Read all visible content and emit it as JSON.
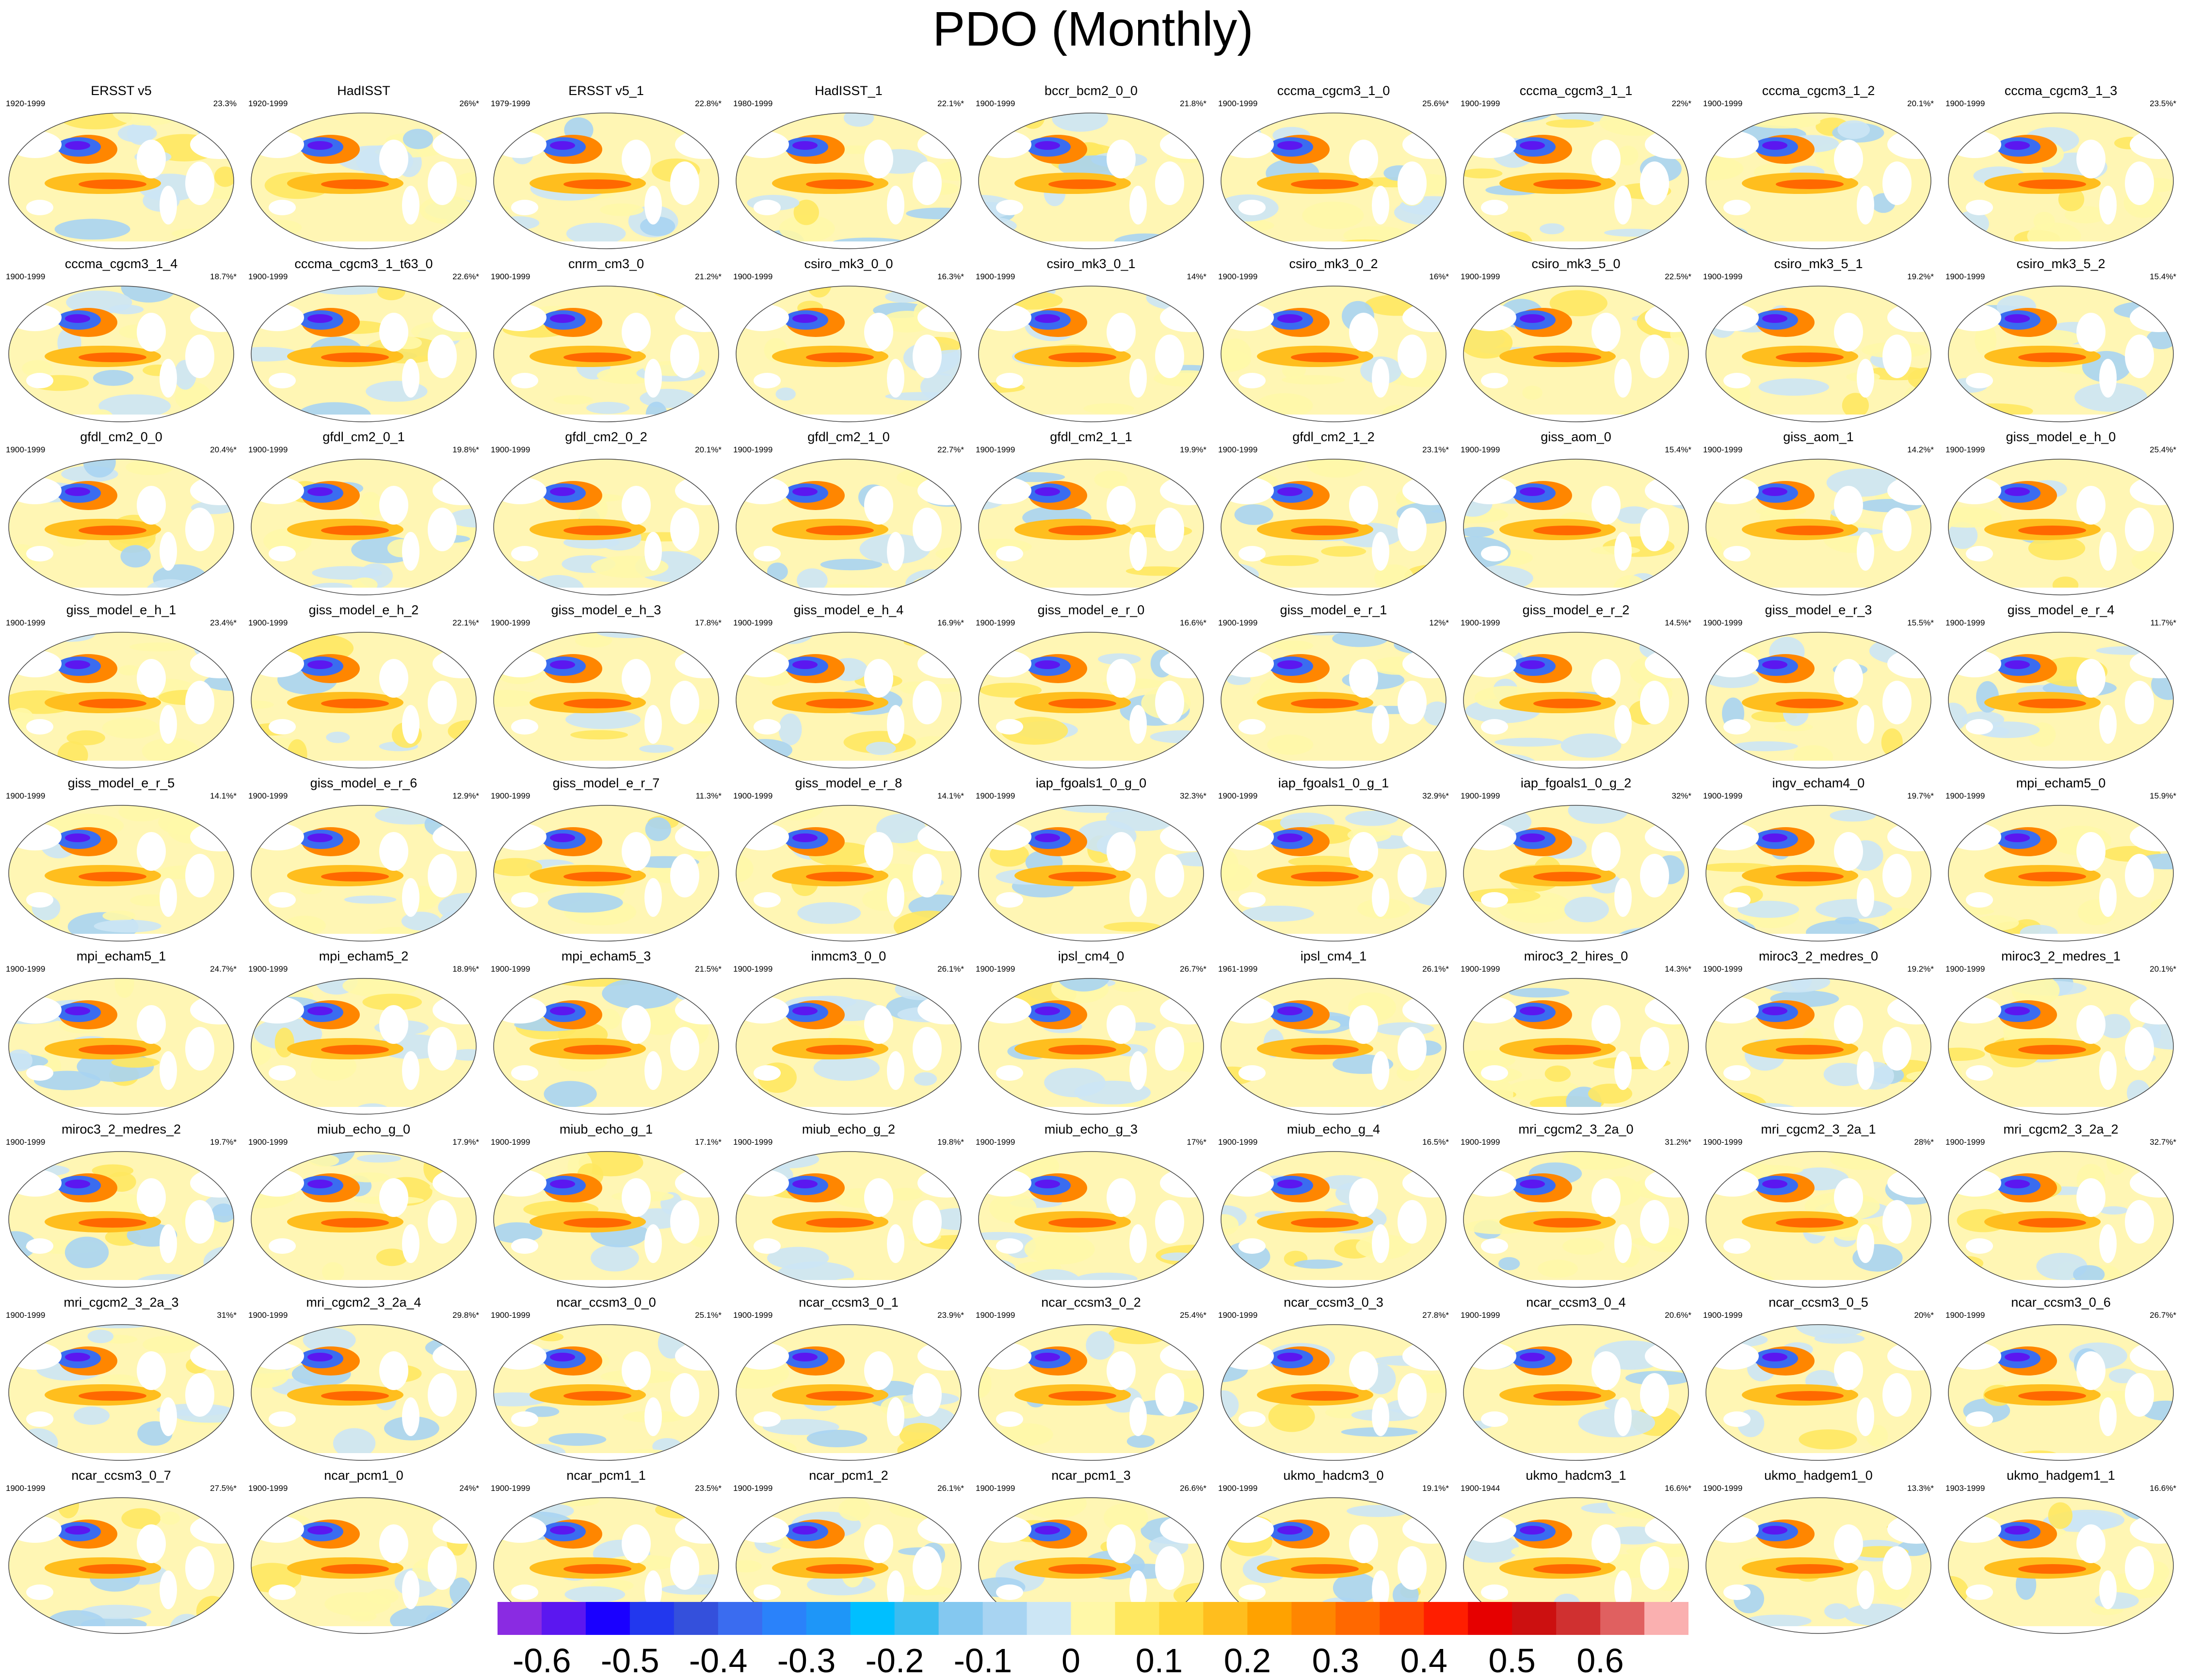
{
  "title": "PDO (Monthly)",
  "panels": [
    {
      "name": "ERSST v5",
      "years": "1920-1999",
      "pct": "23.3%"
    },
    {
      "name": "HadISST",
      "years": "1920-1999",
      "pct": "26%*"
    },
    {
      "name": "ERSST v5_1",
      "years": "1979-1999",
      "pct": "22.8%*"
    },
    {
      "name": "HadISST_1",
      "years": "1980-1999",
      "pct": "22.1%*"
    },
    {
      "name": "bccr_bcm2_0_0",
      "years": "1900-1999",
      "pct": "21.8%*"
    },
    {
      "name": "cccma_cgcm3_1_0",
      "years": "1900-1999",
      "pct": "25.6%*"
    },
    {
      "name": "cccma_cgcm3_1_1",
      "years": "1900-1999",
      "pct": "22%*"
    },
    {
      "name": "cccma_cgcm3_1_2",
      "years": "1900-1999",
      "pct": "20.1%*"
    },
    {
      "name": "cccma_cgcm3_1_3",
      "years": "1900-1999",
      "pct": "23.5%*"
    },
    {
      "name": "cccma_cgcm3_1_4",
      "years": "1900-1999",
      "pct": "18.7%*"
    },
    {
      "name": "cccma_cgcm3_1_t63_0",
      "years": "1900-1999",
      "pct": "22.6%*"
    },
    {
      "name": "cnrm_cm3_0",
      "years": "1900-1999",
      "pct": "21.2%*"
    },
    {
      "name": "csiro_mk3_0_0",
      "years": "1900-1999",
      "pct": "16.3%*"
    },
    {
      "name": "csiro_mk3_0_1",
      "years": "1900-1999",
      "pct": "14%*"
    },
    {
      "name": "csiro_mk3_0_2",
      "years": "1900-1999",
      "pct": "16%*"
    },
    {
      "name": "csiro_mk3_5_0",
      "years": "1900-1999",
      "pct": "22.5%*"
    },
    {
      "name": "csiro_mk3_5_1",
      "years": "1900-1999",
      "pct": "19.2%*"
    },
    {
      "name": "csiro_mk3_5_2",
      "years": "1900-1999",
      "pct": "15.4%*"
    },
    {
      "name": "gfdl_cm2_0_0",
      "years": "1900-1999",
      "pct": "20.4%*"
    },
    {
      "name": "gfdl_cm2_0_1",
      "years": "1900-1999",
      "pct": "19.8%*"
    },
    {
      "name": "gfdl_cm2_0_2",
      "years": "1900-1999",
      "pct": "20.1%*"
    },
    {
      "name": "gfdl_cm2_1_0",
      "years": "1900-1999",
      "pct": "22.7%*"
    },
    {
      "name": "gfdl_cm2_1_1",
      "years": "1900-1999",
      "pct": "19.9%*"
    },
    {
      "name": "gfdl_cm2_1_2",
      "years": "1900-1999",
      "pct": "23.1%*"
    },
    {
      "name": "giss_aom_0",
      "years": "1900-1999",
      "pct": "15.4%*"
    },
    {
      "name": "giss_aom_1",
      "years": "1900-1999",
      "pct": "14.2%*"
    },
    {
      "name": "giss_model_e_h_0",
      "years": "1900-1999",
      "pct": "25.4%*"
    },
    {
      "name": "giss_model_e_h_1",
      "years": "1900-1999",
      "pct": "23.4%*"
    },
    {
      "name": "giss_model_e_h_2",
      "years": "1900-1999",
      "pct": "22.1%*"
    },
    {
      "name": "giss_model_e_h_3",
      "years": "1900-1999",
      "pct": "17.8%*"
    },
    {
      "name": "giss_model_e_h_4",
      "years": "1900-1999",
      "pct": "16.9%*"
    },
    {
      "name": "giss_model_e_r_0",
      "years": "1900-1999",
      "pct": "16.6%*"
    },
    {
      "name": "giss_model_e_r_1",
      "years": "1900-1999",
      "pct": "12%*"
    },
    {
      "name": "giss_model_e_r_2",
      "years": "1900-1999",
      "pct": "14.5%*"
    },
    {
      "name": "giss_model_e_r_3",
      "years": "1900-1999",
      "pct": "15.5%*"
    },
    {
      "name": "giss_model_e_r_4",
      "years": "1900-1999",
      "pct": "11.7%*"
    },
    {
      "name": "giss_model_e_r_5",
      "years": "1900-1999",
      "pct": "14.1%*"
    },
    {
      "name": "giss_model_e_r_6",
      "years": "1900-1999",
      "pct": "12.9%*"
    },
    {
      "name": "giss_model_e_r_7",
      "years": "1900-1999",
      "pct": "11.3%*"
    },
    {
      "name": "giss_model_e_r_8",
      "years": "1900-1999",
      "pct": "14.1%*"
    },
    {
      "name": "iap_fgoals1_0_g_0",
      "years": "1900-1999",
      "pct": "32.3%*"
    },
    {
      "name": "iap_fgoals1_0_g_1",
      "years": "1900-1999",
      "pct": "32.9%*"
    },
    {
      "name": "iap_fgoals1_0_g_2",
      "years": "1900-1999",
      "pct": "32%*"
    },
    {
      "name": "ingv_echam4_0",
      "years": "1900-1999",
      "pct": "19.7%*"
    },
    {
      "name": "mpi_echam5_0",
      "years": "1900-1999",
      "pct": "15.9%*"
    },
    {
      "name": "mpi_echam5_1",
      "years": "1900-1999",
      "pct": "24.7%*"
    },
    {
      "name": "mpi_echam5_2",
      "years": "1900-1999",
      "pct": "18.9%*"
    },
    {
      "name": "mpi_echam5_3",
      "years": "1900-1999",
      "pct": "21.5%*"
    },
    {
      "name": "inmcm3_0_0",
      "years": "1900-1999",
      "pct": "26.1%*"
    },
    {
      "name": "ipsl_cm4_0",
      "years": "1900-1999",
      "pct": "26.7%*"
    },
    {
      "name": "ipsl_cm4_1",
      "years": "1961-1999",
      "pct": "26.1%*"
    },
    {
      "name": "miroc3_2_hires_0",
      "years": "1900-1999",
      "pct": "14.3%*"
    },
    {
      "name": "miroc3_2_medres_0",
      "years": "1900-1999",
      "pct": "19.2%*"
    },
    {
      "name": "miroc3_2_medres_1",
      "years": "1900-1999",
      "pct": "20.1%*"
    },
    {
      "name": "miroc3_2_medres_2",
      "years": "1900-1999",
      "pct": "19.7%*"
    },
    {
      "name": "miub_echo_g_0",
      "years": "1900-1999",
      "pct": "17.9%*"
    },
    {
      "name": "miub_echo_g_1",
      "years": "1900-1999",
      "pct": "17.1%*"
    },
    {
      "name": "miub_echo_g_2",
      "years": "1900-1999",
      "pct": "19.8%*"
    },
    {
      "name": "miub_echo_g_3",
      "years": "1900-1999",
      "pct": "17%*"
    },
    {
      "name": "miub_echo_g_4",
      "years": "1900-1999",
      "pct": "16.5%*"
    },
    {
      "name": "mri_cgcm2_3_2a_0",
      "years": "1900-1999",
      "pct": "31.2%*"
    },
    {
      "name": "mri_cgcm2_3_2a_1",
      "years": "1900-1999",
      "pct": "28%*"
    },
    {
      "name": "mri_cgcm2_3_2a_2",
      "years": "1900-1999",
      "pct": "32.7%*"
    },
    {
      "name": "mri_cgcm2_3_2a_3",
      "years": "1900-1999",
      "pct": "31%*"
    },
    {
      "name": "mri_cgcm2_3_2a_4",
      "years": "1900-1999",
      "pct": "29.8%*"
    },
    {
      "name": "ncar_ccsm3_0_0",
      "years": "1900-1999",
      "pct": "25.1%*"
    },
    {
      "name": "ncar_ccsm3_0_1",
      "years": "1900-1999",
      "pct": "23.9%*"
    },
    {
      "name": "ncar_ccsm3_0_2",
      "years": "1900-1999",
      "pct": "25.4%*"
    },
    {
      "name": "ncar_ccsm3_0_3",
      "years": "1900-1999",
      "pct": "27.8%*"
    },
    {
      "name": "ncar_ccsm3_0_4",
      "years": "1900-1999",
      "pct": "20.6%*"
    },
    {
      "name": "ncar_ccsm3_0_5",
      "years": "1900-1999",
      "pct": "20%*"
    },
    {
      "name": "ncar_ccsm3_0_6",
      "years": "1900-1999",
      "pct": "26.7%*"
    },
    {
      "name": "ncar_ccsm3_0_7",
      "years": "1900-1999",
      "pct": "27.5%*"
    },
    {
      "name": "ncar_pcm1_0",
      "years": "1900-1999",
      "pct": "24%*"
    },
    {
      "name": "ncar_pcm1_1",
      "years": "1900-1999",
      "pct": "23.5%*"
    },
    {
      "name": "ncar_pcm1_2",
      "years": "1900-1999",
      "pct": "26.1%*"
    },
    {
      "name": "ncar_pcm1_3",
      "years": "1900-1999",
      "pct": "26.6%*"
    },
    {
      "name": "ukmo_hadcm3_0",
      "years": "1900-1999",
      "pct": "19.1%*"
    },
    {
      "name": "ukmo_hadcm3_1",
      "years": "1900-1944",
      "pct": "16.6%*"
    },
    {
      "name": "ukmo_hadgem1_0",
      "years": "1900-1999",
      "pct": "13.3%*"
    },
    {
      "name": "ukmo_hadgem1_1",
      "years": "1903-1999",
      "pct": "16.6%*"
    }
  ],
  "colorbar": {
    "colors": [
      "#8a2be2",
      "#5b17f0",
      "#1a00ff",
      "#2238ee",
      "#3450dc",
      "#3a6cf0",
      "#2a82fa",
      "#1e96f8",
      "#00bfff",
      "#3cbcf0",
      "#84c8f0",
      "#a8d4f2",
      "#cce6f5",
      "#fff8a8",
      "#ffe860",
      "#ffd83a",
      "#ffbe1e",
      "#ffa200",
      "#ff8600",
      "#ff6800",
      "#ff4800",
      "#ff1e00",
      "#e60000",
      "#cc1010",
      "#d03030",
      "#e06060",
      "#fab0b0"
    ],
    "labels": [
      {
        "text": "-0.6",
        "boundary": 1
      },
      {
        "text": "-0.5",
        "boundary": 3
      },
      {
        "text": "-0.4",
        "boundary": 5
      },
      {
        "text": "-0.3",
        "boundary": 7
      },
      {
        "text": "-0.2",
        "boundary": 9
      },
      {
        "text": "-0.1",
        "boundary": 11
      },
      {
        "text": "0",
        "boundary": 13
      },
      {
        "text": "0.1",
        "boundary": 15
      },
      {
        "text": "0.2",
        "boundary": 17
      },
      {
        "text": "0.3",
        "boundary": 19
      },
      {
        "text": "0.4",
        "boundary": 21
      },
      {
        "text": "0.5",
        "boundary": 23
      },
      {
        "text": "0.6",
        "boundary": 25
      }
    ]
  }
}
